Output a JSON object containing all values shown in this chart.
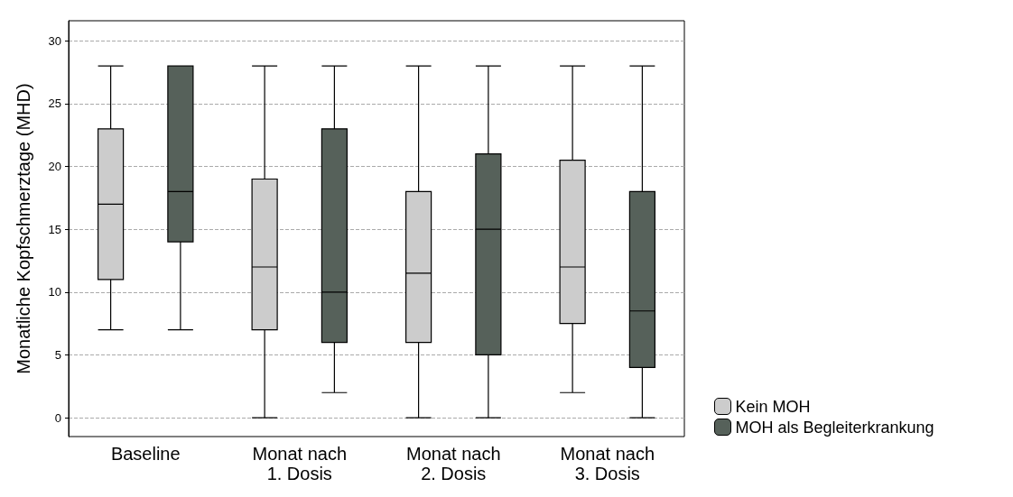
{
  "chart_data": {
    "type": "box",
    "ylabel": "Monatliche Kopfschmerztage (MHD)",
    "categories": [
      "Baseline",
      "Monat nach\n1. Dosis",
      "Monat nach\n2. Dosis",
      "Monat nach\n3. Dosis"
    ],
    "series": [
      {
        "name": "Kein MOH",
        "color": "#cccccc",
        "boxes": [
          {
            "low": 7,
            "q1": 11,
            "median": 17,
            "q3": 23,
            "high": 28
          },
          {
            "low": 0,
            "q1": 7,
            "median": 12,
            "q3": 19,
            "high": 28
          },
          {
            "low": 0,
            "q1": 6,
            "median": 11.5,
            "q3": 18,
            "high": 28
          },
          {
            "low": 2,
            "q1": 7.5,
            "median": 12,
            "q3": 20.5,
            "high": 28
          }
        ]
      },
      {
        "name": "MOH als Begleiterkrankung",
        "color": "#56615a",
        "boxes": [
          {
            "low": 7,
            "q1": 14,
            "median": 18,
            "q3": 28,
            "high": 28
          },
          {
            "low": 2,
            "q1": 6,
            "median": 10,
            "q3": 23,
            "high": 28
          },
          {
            "low": 0,
            "q1": 5,
            "median": 15,
            "q3": 21,
            "high": 28
          },
          {
            "low": 0,
            "q1": 4,
            "median": 8.5,
            "q3": 18,
            "high": 28
          }
        ]
      }
    ],
    "ylim": [
      -1.5,
      31.6
    ],
    "yticks": [
      0,
      5,
      10,
      15,
      20,
      25,
      30
    ],
    "grid": "y",
    "legend": "bottom right"
  }
}
